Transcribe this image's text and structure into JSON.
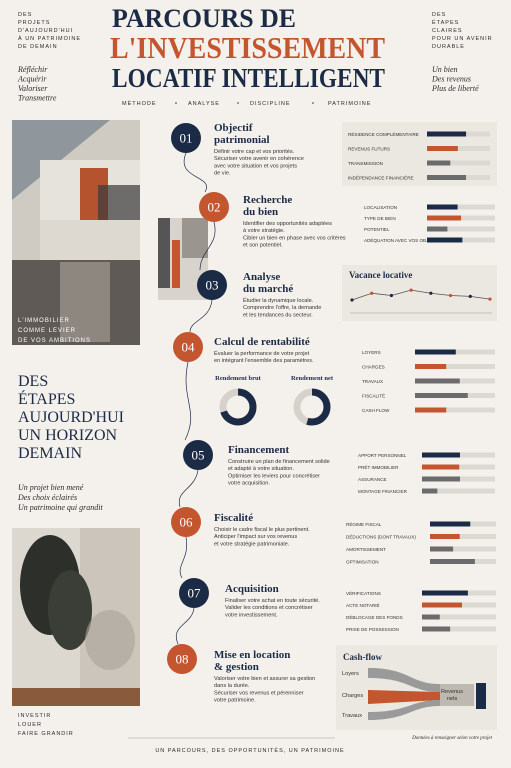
{
  "header": {
    "left_lines": [
      "DES",
      "PROJETS",
      "D'AUJOURD'HUI",
      "À UN PATRIMOINE",
      "DE DEMAIN"
    ],
    "left_verbs": [
      "Réfléchir",
      "Acquérir",
      "Valoriser",
      "Transmettre"
    ],
    "title_lines": [
      "PARCOURS DE",
      "L'INVESTISSEMENT",
      "LOCATIF INTELLIGENT"
    ],
    "right_lines": [
      "DES",
      "ÉTAPES",
      "CLAIRES",
      "POUR UN AVENIR",
      "DURABLE"
    ],
    "right_phrases": [
      "Un bien",
      "Des revenus",
      "Plus de liberté"
    ],
    "tagline": [
      "MÉTHODE",
      "ANALYSE",
      "DISCIPLINE",
      "PATRIMOINE"
    ]
  },
  "left": {
    "photo_caption": [
      "L'IMMOBILIER",
      "COMME LEVIER",
      "DE VOS AMBITIONS"
    ],
    "headline": [
      "DES",
      "ÉTAPES",
      "AUJOURD'HUI",
      "UN HORIZON",
      "DEMAIN"
    ],
    "phrases": [
      "Un projet bien mené",
      "Des choix éclairés",
      "Un patrimoine qui grandit"
    ],
    "footer_words": [
      "INVESTIR",
      "LOUER",
      "FAIRE GRANDIR"
    ]
  },
  "steps": [
    {
      "number": "01",
      "color": "#1c2b45",
      "title": [
        "Objectif",
        "patrimonial"
      ],
      "description": [
        "Définir votre cap et vos priorités.",
        "Sécuriser votre avenir en cohérence",
        "avec votre situation et vos projets",
        "de vie."
      ],
      "bars": [
        {
          "label": "RÉSIDENCE COMPLÉMENTAIRE",
          "value": 62,
          "color": "#1c2b45"
        },
        {
          "label": "REVENUS FUTURS",
          "value": 49,
          "color": "#c4562f"
        },
        {
          "label": "TRANSMISSION",
          "value": 37,
          "color": "#6b6b6b"
        },
        {
          "label": "INDÉPENDANCE FINANCIÈRE",
          "value": 62,
          "color": "#6b6b6b"
        }
      ]
    },
    {
      "number": "02",
      "color": "#c4562f",
      "title": [
        "Recherche",
        "du bien"
      ],
      "description": [
        "Identifier des opportunités adaptées",
        "à votre stratégie.",
        "Cibler un bien en phase avec vos critères",
        "et son potentiel."
      ],
      "bars": [
        {
          "label": "LOCALISATION",
          "value": 45,
          "color": "#1c2b45"
        },
        {
          "label": "TYPE DE BIEN",
          "value": 50,
          "color": "#c4562f"
        },
        {
          "label": "POTENTIEL",
          "value": 30,
          "color": "#6b6b6b"
        },
        {
          "label": "ADÉQUATION AVEC VOS OBJECTIFS",
          "value": 52,
          "color": "#1c2b45"
        }
      ]
    },
    {
      "number": "03",
      "color": "#1c2b45",
      "title": [
        "Analyse",
        "du marché"
      ],
      "description": [
        "Étudier la dynamique locale.",
        "Comprendre l'offre, la demande",
        "et les tendances du secteur."
      ],
      "chart": {
        "title": "Vacance locative",
        "values": [
          40,
          55,
          50,
          62,
          55,
          50,
          48,
          42
        ]
      }
    },
    {
      "number": "04",
      "color": "#c4562f",
      "title": [
        "Calcul de rentabilité"
      ],
      "description": [
        "Évaluer la performance de votre projet",
        "en intégrant l'ensemble des paramètres."
      ],
      "donuts": [
        {
          "label": "Rendement brut",
          "value": 70
        },
        {
          "label": "Rendement net",
          "value": 55
        }
      ],
      "bars": [
        {
          "label": "LOYERS",
          "value": 51,
          "color": "#1c2b45"
        },
        {
          "label": "CHARGES",
          "value": 39,
          "color": "#c4562f"
        },
        {
          "label": "TRAVAUX",
          "value": 56,
          "color": "#6b6b6b"
        },
        {
          "label": "FISCALITÉ",
          "value": 66,
          "color": "#6b6b6b"
        },
        {
          "label": "CASH FLOW",
          "value": 39,
          "color": "#c4562f"
        }
      ]
    },
    {
      "number": "05",
      "color": "#1c2b45",
      "title": [
        "Financement"
      ],
      "description": [
        "Construire un plan de financement solide",
        "et adapté à votre situation.",
        "Optimiser les leviers pour concrétiser",
        "votre acquisition."
      ],
      "bars": [
        {
          "label": "APPORT PERSONNEL",
          "value": 52,
          "color": "#1c2b45"
        },
        {
          "label": "PRÊT IMMOBILIER",
          "value": 51,
          "color": "#c4562f"
        },
        {
          "label": "ASSURANCE",
          "value": 52,
          "color": "#6b6b6b"
        },
        {
          "label": "MONTAGE FINANCIER",
          "value": 21,
          "color": "#6b6b6b"
        }
      ]
    },
    {
      "number": "06",
      "color": "#c4562f",
      "title": [
        "Fiscalité"
      ],
      "description": [
        "Choisir le cadre fiscal le plus pertinent.",
        "Anticiper l'impact sur vos revenus",
        "et votre stratégie patrimoniale."
      ],
      "bars": [
        {
          "label": "RÉGIME FISCAL",
          "value": 61,
          "color": "#1c2b45"
        },
        {
          "label": "DÉDUCTIONS (DONT TRAVAUX)",
          "value": 45,
          "color": "#c4562f"
        },
        {
          "label": "AMORTISSEMENT",
          "value": 35,
          "color": "#6b6b6b"
        },
        {
          "label": "OPTIMISATION",
          "value": 68,
          "color": "#6b6b6b"
        }
      ]
    },
    {
      "number": "07",
      "color": "#1c2b45",
      "title": [
        "Acquisition"
      ],
      "description": [
        "Finaliser votre achat en toute sécurité.",
        "Valider les conditions et concrétiser",
        "votre investissement."
      ],
      "bars": [
        {
          "label": "VÉRIFICATIONS",
          "value": 62,
          "color": "#1c2b45"
        },
        {
          "label": "ACTE NOTARIÉ",
          "value": 54,
          "color": "#c4562f"
        },
        {
          "label": "DÉBLOCAGE DES FONDS",
          "value": 24,
          "color": "#6b6b6b"
        },
        {
          "label": "PRISE DE POSSESSION",
          "value": 38,
          "color": "#6b6b6b"
        }
      ]
    },
    {
      "number": "08",
      "color": "#c4562f",
      "title": [
        "Mise en location",
        "& gestion"
      ],
      "description": [
        "Valoriser votre bien et assurer sa gestion",
        "dans la durée.",
        "Sécuriser vos revenus et pérenniser",
        "votre patrimoine."
      ],
      "cashflow": {
        "title": "Cash-flow",
        "inputs": [
          "Loyers",
          "Charges",
          "Travaux"
        ],
        "output": [
          "Revenus",
          "nets"
        ]
      }
    }
  ],
  "footer": {
    "note": "Données à renseigner selon votre projet",
    "tagline": "UN PARCOURS, DES OPPORTUNITÉS, UN PATRIMOINE"
  }
}
